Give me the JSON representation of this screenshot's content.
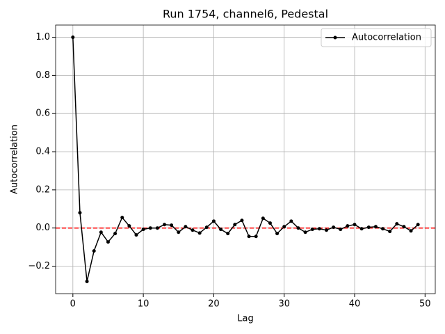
{
  "chart_data": {
    "type": "line",
    "title": "Run 1754, channel6, Pedestal",
    "xlabel": "Lag",
    "ylabel": "Autocorrelation",
    "x": [
      0,
      1,
      2,
      3,
      4,
      5,
      6,
      7,
      8,
      9,
      10,
      11,
      12,
      13,
      14,
      15,
      16,
      17,
      18,
      19,
      20,
      21,
      22,
      23,
      24,
      25,
      26,
      27,
      28,
      29,
      30,
      31,
      32,
      33,
      34,
      35,
      36,
      37,
      38,
      39,
      40,
      41,
      42,
      43,
      44,
      45,
      46,
      47,
      48,
      49
    ],
    "series": [
      {
        "name": "Autocorrelation",
        "color": "#000000",
        "values": [
          1.0,
          0.08,
          -0.28,
          -0.12,
          -0.022,
          -0.073,
          -0.029,
          0.055,
          0.011,
          -0.036,
          -0.007,
          0.0,
          0.0,
          0.018,
          0.015,
          -0.022,
          0.007,
          -0.011,
          -0.026,
          0.004,
          0.036,
          -0.007,
          -0.029,
          0.018,
          0.04,
          -0.044,
          -0.044,
          0.051,
          0.026,
          -0.029,
          0.007,
          0.036,
          0.0,
          -0.022,
          -0.007,
          -0.004,
          -0.011,
          0.004,
          -0.007,
          0.011,
          0.018,
          -0.004,
          0.004,
          0.007,
          -0.004,
          -0.018,
          0.022,
          0.007,
          -0.015,
          0.018
        ]
      }
    ],
    "hline": {
      "value": 0,
      "color": "#ff0000"
    },
    "xlim": [
      -2.45,
      51.45
    ],
    "xticks": [
      0,
      10,
      20,
      30,
      40,
      50
    ],
    "ylim": [
      -0.344,
      1.064
    ],
    "yticks": [
      {
        "value": -0.2,
        "label": "−0.2"
      },
      {
        "value": 0,
        "label": "0.0"
      },
      {
        "value": 0.2,
        "label": "0.2"
      },
      {
        "value": 0.4,
        "label": "0.4"
      },
      {
        "value": 0.6,
        "label": "0.6"
      },
      {
        "value": 0.8,
        "label": "0.8"
      },
      {
        "value": 1,
        "label": "1.0"
      }
    ],
    "grid": true,
    "legend": "upper right"
  }
}
